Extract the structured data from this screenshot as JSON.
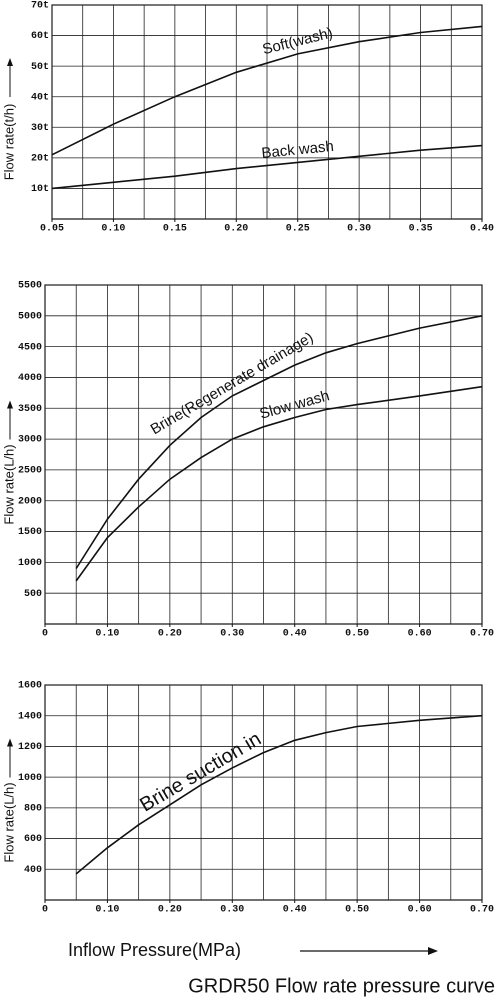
{
  "chart_data": [
    {
      "type": "line",
      "ylabel": "Flow rate(t/h)",
      "x": [
        0.05,
        0.1,
        0.15,
        0.2,
        0.25,
        0.3,
        0.35,
        0.4
      ],
      "series": [
        {
          "name": "Soft(wash)",
          "color": "#111111",
          "values": [
            21,
            31,
            40,
            48,
            54,
            58,
            61,
            63
          ]
        },
        {
          "name": "Back wash",
          "color": "#111111",
          "values": [
            10,
            12,
            14,
            16.5,
            18.5,
            20.5,
            22.5,
            24
          ]
        }
      ],
      "xlim": [
        0.05,
        0.4
      ],
      "xticks": [
        0.05,
        {
          "value": 0.1,
          "label": "0.10"
        },
        0.15,
        {
          "value": 0.2,
          "label": "0.20"
        },
        0.25,
        {
          "value": 0.3,
          "label": "0.30"
        },
        0.35,
        {
          "value": 0.4,
          "label": "0.40"
        }
      ],
      "xgrid": [
        0.05,
        0.075,
        0.1,
        0.125,
        0.15,
        0.175,
        0.2,
        0.225,
        0.25,
        0.275,
        0.3,
        0.325,
        0.35,
        0.375,
        0.4
      ],
      "ylim": [
        0,
        70
      ],
      "yticks": [
        {
          "value": 10,
          "label": "10t"
        },
        {
          "value": 20,
          "label": "20t"
        },
        {
          "value": 30,
          "label": "30t"
        },
        {
          "value": 40,
          "label": "40t"
        },
        {
          "value": 50,
          "label": "50t"
        },
        {
          "value": 60,
          "label": "60t"
        },
        {
          "value": 70,
          "label": "70t"
        }
      ],
      "grid": true
    },
    {
      "type": "line",
      "ylabel": "Flow rate(L/h)",
      "x": [
        0.05,
        0.1,
        0.15,
        0.2,
        0.25,
        0.3,
        0.35,
        0.4,
        0.45,
        0.5,
        0.6,
        0.7
      ],
      "series": [
        {
          "name": "Brine(Regenerate drainage)",
          "color": "#111111",
          "values": [
            900,
            1700,
            2350,
            2900,
            3350,
            3700,
            3950,
            4200,
            4400,
            4550,
            4800,
            5000
          ]
        },
        {
          "name": "Slow wash",
          "color": "#111111",
          "values": [
            700,
            1400,
            1900,
            2350,
            2700,
            3000,
            3200,
            3350,
            3480,
            3560,
            3700,
            3850
          ]
        }
      ],
      "xlim": [
        0,
        0.7
      ],
      "xticks": [
        0,
        {
          "value": 0.1,
          "label": "0.10"
        },
        {
          "value": 0.2,
          "label": "0.20"
        },
        {
          "value": 0.3,
          "label": "0.30"
        },
        {
          "value": 0.4,
          "label": "0.40"
        },
        {
          "value": 0.5,
          "label": "0.50"
        },
        {
          "value": 0.6,
          "label": "0.60"
        },
        {
          "value": 0.7,
          "label": "0.70"
        }
      ],
      "xgrid": [
        0,
        0.05,
        0.1,
        0.15,
        0.2,
        0.25,
        0.3,
        0.35,
        0.4,
        0.45,
        0.5,
        0.55,
        0.6,
        0.65,
        0.7
      ],
      "ylim": [
        0,
        5500
      ],
      "yticks": [
        500,
        1000,
        1500,
        2000,
        2500,
        3000,
        3500,
        4000,
        4500,
        5000,
        5500
      ],
      "grid": true
    },
    {
      "type": "line",
      "ylabel": "Flow rate(L/h)",
      "xlabel": "Inflow Pressure(MPa)",
      "x": [
        0.05,
        0.1,
        0.15,
        0.2,
        0.25,
        0.3,
        0.35,
        0.4,
        0.45,
        0.5,
        0.6,
        0.7
      ],
      "series": [
        {
          "name": "Brine suction in",
          "color": "#111111",
          "values": [
            370,
            540,
            690,
            820,
            950,
            1060,
            1160,
            1240,
            1290,
            1330,
            1370,
            1400
          ]
        }
      ],
      "xlim": [
        0,
        0.7
      ],
      "xticks": [
        0,
        {
          "value": 0.1,
          "label": "0.10"
        },
        {
          "value": 0.2,
          "label": "0.20"
        },
        {
          "value": 0.3,
          "label": "0.30"
        },
        {
          "value": 0.4,
          "label": "0.40"
        },
        {
          "value": 0.5,
          "label": "0.50"
        },
        {
          "value": 0.6,
          "label": "0.60"
        },
        {
          "value": 0.7,
          "label": "0.70"
        }
      ],
      "xgrid": [
        0,
        0.05,
        0.1,
        0.15,
        0.2,
        0.25,
        0.3,
        0.35,
        0.4,
        0.45,
        0.5,
        0.55,
        0.6,
        0.65,
        0.7
      ],
      "ylim": [
        200,
        1600
      ],
      "yticks": [
        400,
        600,
        800,
        1000,
        1200,
        1400,
        1600
      ],
      "grid": true
    }
  ],
  "caption": "GRDR50 Flow rate pressure curve"
}
